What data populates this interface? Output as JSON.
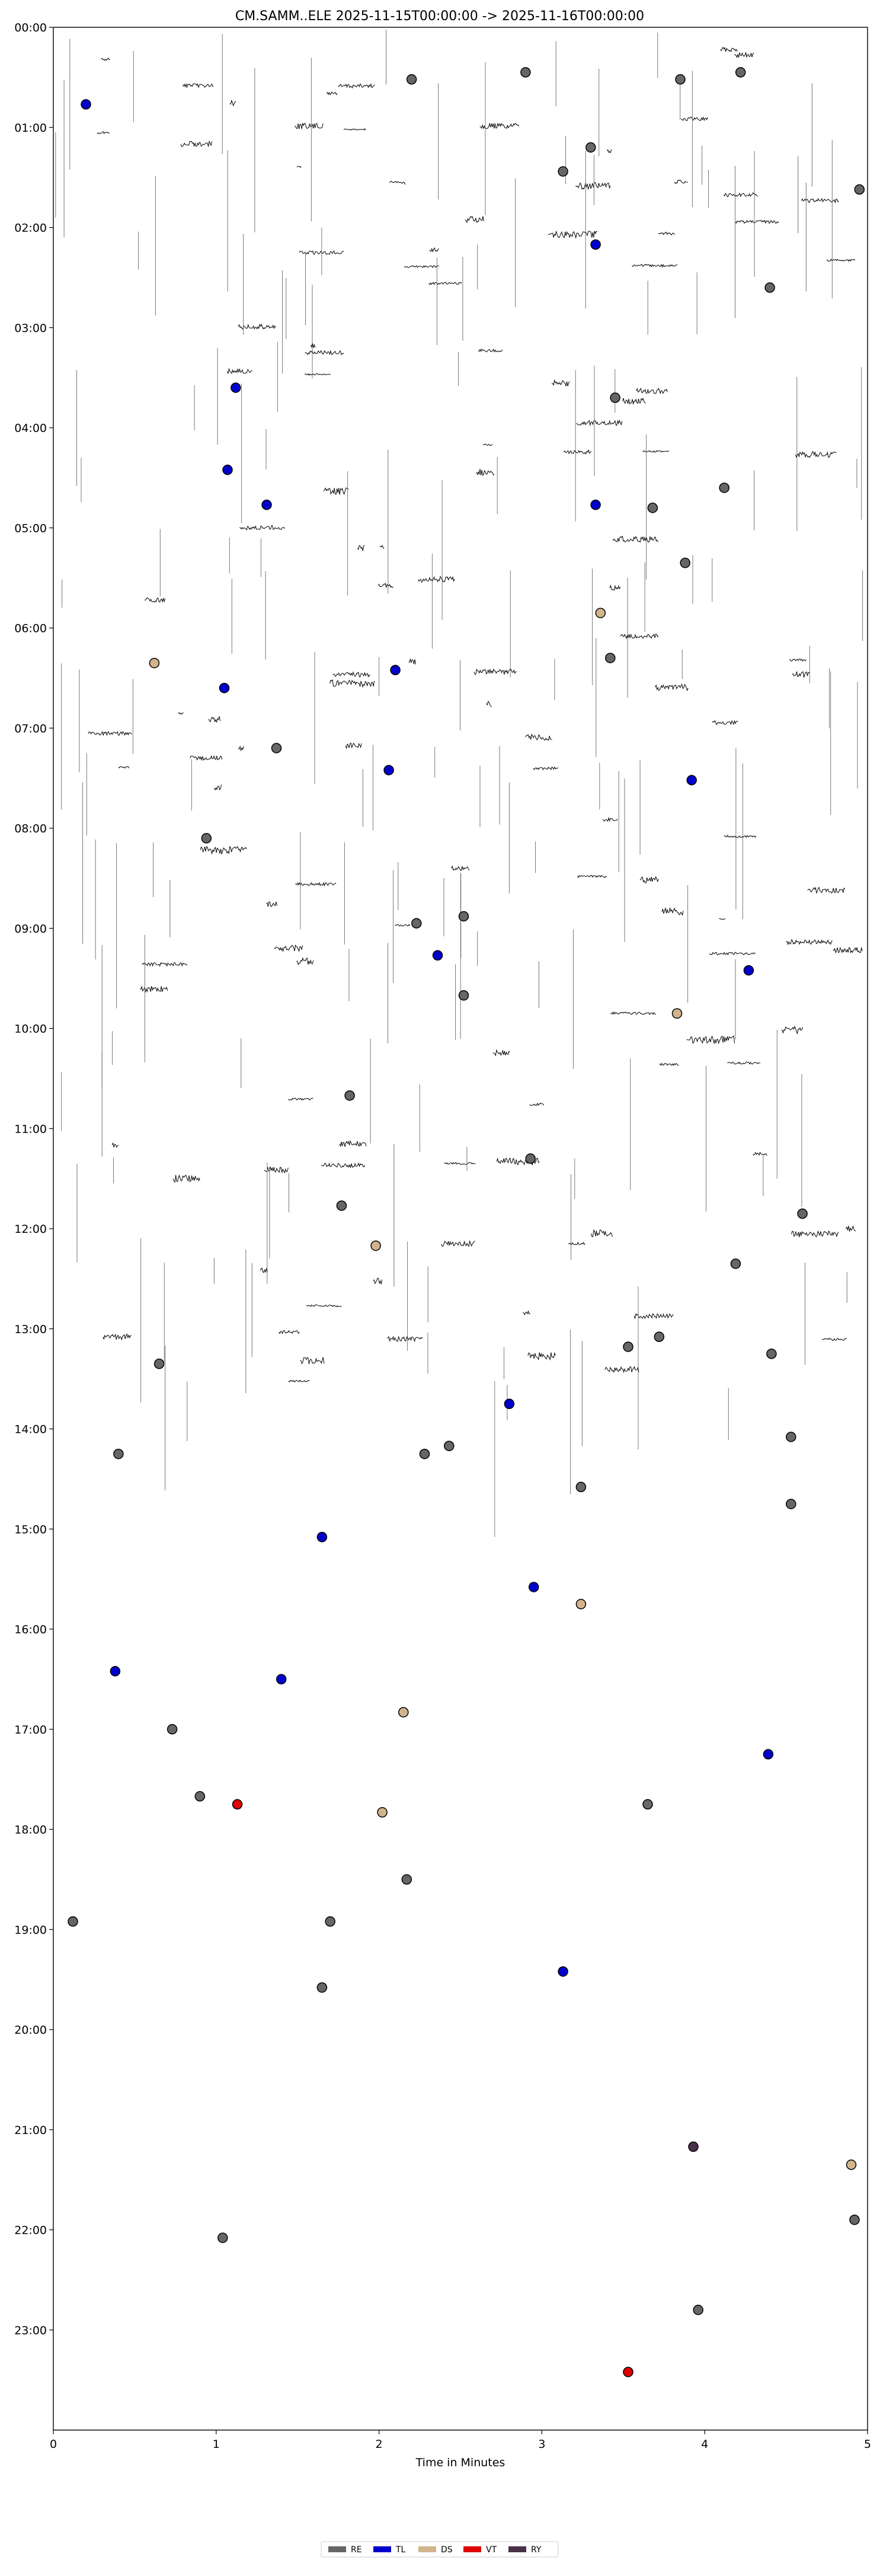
{
  "chart_data": {
    "type": "scatter",
    "title": "CM.SAMM..ELE  2025-11-15T00:00:00 -> 2025-11-16T00:00:00",
    "xlabel": "Time in Minutes",
    "ylabel": "",
    "xlim": [
      0,
      5
    ],
    "ylim": [
      0,
      24
    ],
    "x_ticks": [
      "0",
      "1",
      "2",
      "3",
      "4",
      "5"
    ],
    "y_ticks": [
      "00:00",
      "01:00",
      "02:00",
      "03:00",
      "04:00",
      "05:00",
      "06:00",
      "07:00",
      "08:00",
      "09:00",
      "10:00",
      "11:00",
      "12:00",
      "13:00",
      "14:00",
      "15:00",
      "16:00",
      "17:00",
      "18:00",
      "19:00",
      "20:00",
      "21:00",
      "22:00",
      "23:00"
    ],
    "legend_position": "bottom-center",
    "background": "helicorder seismogram traces (hourly rows), present from 00:00 to about 13:30",
    "series": [
      {
        "name": "RE",
        "color": "#666666",
        "points": [
          [
            2.2,
            0.52
          ],
          [
            2.9,
            0.45
          ],
          [
            3.85,
            0.52
          ],
          [
            4.22,
            0.45
          ],
          [
            3.13,
            1.44
          ],
          [
            3.3,
            1.2
          ],
          [
            4.95,
            1.62
          ],
          [
            4.4,
            2.6
          ],
          [
            3.45,
            3.7
          ],
          [
            4.12,
            4.6
          ],
          [
            3.68,
            4.8
          ],
          [
            3.88,
            5.35
          ],
          [
            3.42,
            6.3
          ],
          [
            1.37,
            7.2
          ],
          [
            0.94,
            8.1
          ],
          [
            2.23,
            8.95
          ],
          [
            2.52,
            8.88
          ],
          [
            2.52,
            9.67
          ],
          [
            1.82,
            10.67
          ],
          [
            2.93,
            11.3
          ],
          [
            1.77,
            11.77
          ],
          [
            4.6,
            11.85
          ],
          [
            4.19,
            12.35
          ],
          [
            3.53,
            13.18
          ],
          [
            3.72,
            13.08
          ],
          [
            4.41,
            13.25
          ],
          [
            0.65,
            13.35
          ],
          [
            0.4,
            14.25
          ],
          [
            2.28,
            14.25
          ],
          [
            2.43,
            14.17
          ],
          [
            4.53,
            14.08
          ],
          [
            3.24,
            14.58
          ],
          [
            4.53,
            14.75
          ],
          [
            0.73,
            17.0
          ],
          [
            0.9,
            17.67
          ],
          [
            3.65,
            17.75
          ],
          [
            2.17,
            18.5
          ],
          [
            0.12,
            18.92
          ],
          [
            1.7,
            18.92
          ],
          [
            1.65,
            19.58
          ],
          [
            4.92,
            21.9
          ],
          [
            1.04,
            22.08
          ],
          [
            3.96,
            22.8
          ]
        ]
      },
      {
        "name": "TL",
        "color": "#0000cc",
        "points": [
          [
            0.2,
            0.77
          ],
          [
            3.33,
            2.17
          ],
          [
            1.12,
            3.6
          ],
          [
            1.07,
            4.42
          ],
          [
            1.31,
            4.77
          ],
          [
            3.33,
            4.77
          ],
          [
            2.1,
            6.42
          ],
          [
            1.05,
            6.6
          ],
          [
            2.06,
            7.42
          ],
          [
            3.92,
            7.52
          ],
          [
            2.36,
            9.27
          ],
          [
            4.27,
            9.42
          ],
          [
            2.8,
            13.75
          ],
          [
            1.65,
            15.08
          ],
          [
            2.95,
            15.58
          ],
          [
            0.38,
            16.42
          ],
          [
            1.4,
            16.5
          ],
          [
            4.39,
            17.25
          ],
          [
            3.13,
            19.42
          ]
        ]
      },
      {
        "name": "DS",
        "color": "#d2b48c",
        "points": [
          [
            0.62,
            6.35
          ],
          [
            3.36,
            5.85
          ],
          [
            3.83,
            9.85
          ],
          [
            1.98,
            12.17
          ],
          [
            3.24,
            15.75
          ],
          [
            2.15,
            16.83
          ],
          [
            2.02,
            17.83
          ],
          [
            4.9,
            21.35
          ]
        ]
      },
      {
        "name": "VT",
        "color": "#dd0000",
        "points": [
          [
            1.13,
            17.75
          ],
          [
            3.53,
            23.42
          ]
        ]
      },
      {
        "name": "RY",
        "color": "#4b3049",
        "points": [
          [
            3.93,
            21.17
          ]
        ]
      }
    ]
  }
}
